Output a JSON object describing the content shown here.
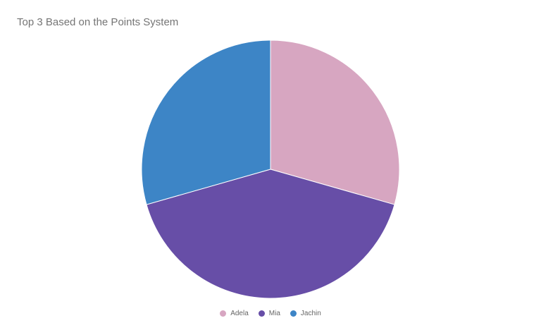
{
  "chart_data": {
    "type": "pie",
    "title": "Top 3 Based on the Points System",
    "categories": [
      "Adela",
      "Mia",
      "Jachin"
    ],
    "values": [
      5,
      7,
      5
    ],
    "colors": [
      "#d7a6c1",
      "#674ea7",
      "#3d85c6"
    ],
    "legend_position": "bottom"
  }
}
